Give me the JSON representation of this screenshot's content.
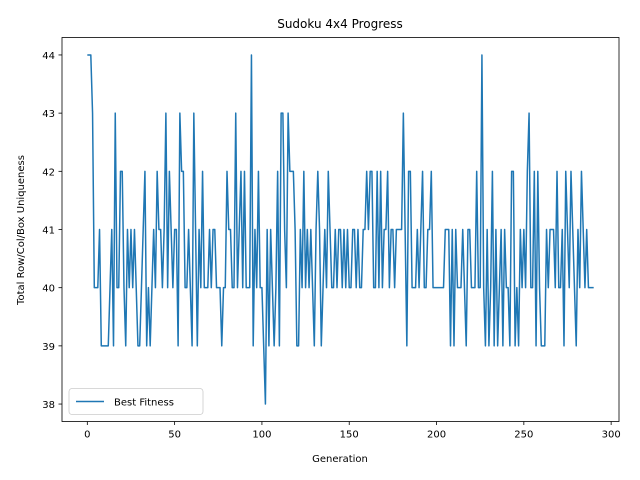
{
  "chart_data": {
    "type": "line",
    "title": "Sudoku 4x4 Progress",
    "x_label": "Generation",
    "y_label": "Total Row/Col/Box Uniqueness",
    "x": [
      0,
      1,
      2,
      3,
      4,
      5,
      6,
      7,
      8,
      9,
      10,
      11,
      12,
      13,
      14,
      15,
      16,
      17,
      18,
      19,
      20,
      21,
      22,
      23,
      24,
      25,
      26,
      27,
      28,
      29,
      30,
      31,
      32,
      33,
      34,
      35,
      36,
      37,
      38,
      39,
      40,
      41,
      42,
      43,
      44,
      45,
      46,
      47,
      48,
      49,
      50,
      51,
      52,
      53,
      54,
      55,
      56,
      57,
      58,
      59,
      60,
      61,
      62,
      63,
      64,
      65,
      66,
      67,
      68,
      69,
      70,
      71,
      72,
      73,
      74,
      75,
      76,
      77,
      78,
      79,
      80,
      81,
      82,
      83,
      84,
      85,
      86,
      87,
      88,
      89,
      90,
      91,
      92,
      93,
      94,
      95,
      96,
      97,
      98,
      99,
      100,
      101,
      102,
      103,
      104,
      105,
      106,
      107,
      108,
      109,
      110,
      111,
      112,
      113,
      114,
      115,
      116,
      117,
      118,
      119,
      120,
      121,
      122,
      123,
      124,
      125,
      126,
      127,
      128,
      129,
      130,
      131,
      132,
      133,
      134,
      135,
      136,
      137,
      138,
      139,
      140,
      141,
      142,
      143,
      144,
      145,
      146,
      147,
      148,
      149,
      150,
      151,
      152,
      153,
      154,
      155,
      156,
      157,
      158,
      159,
      160,
      161,
      162,
      163,
      164,
      165,
      166,
      167,
      168,
      169,
      170,
      171,
      172,
      173,
      174,
      175,
      176,
      177,
      178,
      179,
      180,
      181,
      182,
      183,
      184,
      185,
      186,
      187,
      188,
      189,
      190,
      191,
      192,
      193,
      194,
      195,
      196,
      197,
      198,
      199,
      200,
      201,
      202,
      203,
      204,
      205,
      206,
      207,
      208,
      209,
      210,
      211,
      212,
      213,
      214,
      215,
      216,
      217,
      218,
      219,
      220,
      221,
      222,
      223,
      224,
      225,
      226,
      227,
      228,
      229,
      230,
      231,
      232,
      233,
      234,
      235,
      236,
      237,
      238,
      239,
      240,
      241,
      242,
      243,
      244,
      245,
      246,
      247,
      248,
      249,
      250,
      251,
      252,
      253,
      254,
      255,
      256,
      257,
      258,
      259,
      260,
      261,
      262,
      263,
      264,
      265,
      266,
      267,
      268,
      269,
      270,
      271,
      272,
      273,
      274,
      275,
      276,
      277,
      278,
      279,
      280,
      281,
      282,
      283,
      284,
      285,
      286,
      287,
      288,
      289,
      290
    ],
    "series": [
      {
        "name": "Best Fitness",
        "color": "#1f77b4",
        "values": [
          44,
          44,
          44,
          43,
          40,
          40,
          40,
          41,
          39,
          39,
          39,
          39,
          39,
          40,
          41,
          39,
          43,
          40,
          40,
          42,
          42,
          40,
          39,
          41,
          40,
          41,
          40,
          41,
          40,
          39,
          39,
          40,
          41,
          42,
          39,
          40,
          39,
          40,
          41,
          40,
          42,
          41,
          41,
          40,
          41,
          43,
          40,
          42,
          41,
          40,
          41,
          41,
          39,
          43,
          42,
          42,
          40,
          40,
          41,
          40,
          39,
          43,
          41,
          39,
          41,
          40,
          42,
          40,
          40,
          40,
          41,
          40,
          41,
          41,
          40,
          40,
          40,
          39,
          40,
          40,
          42,
          41,
          41,
          40,
          40,
          43,
          40,
          41,
          42,
          40,
          42,
          40,
          40,
          40,
          44,
          39,
          41,
          40,
          42,
          40,
          40,
          39,
          38,
          41,
          39,
          41,
          40,
          39,
          40,
          42,
          39,
          43,
          43,
          41,
          40,
          43,
          42,
          42,
          42,
          41,
          39,
          39,
          41,
          40,
          42,
          40,
          41,
          40,
          41,
          40,
          39,
          41,
          42,
          41,
          39,
          40,
          41,
          40,
          42,
          41,
          40,
          40,
          41,
          40,
          41,
          41,
          40,
          41,
          40,
          41,
          40,
          40,
          41,
          41,
          40,
          41,
          40,
          40,
          41,
          41,
          42,
          41,
          42,
          42,
          40,
          40,
          42,
          40,
          42,
          40,
          41,
          41,
          42,
          40,
          41,
          41,
          40,
          41,
          41,
          41,
          41,
          43,
          41,
          39,
          42,
          42,
          40,
          40,
          40,
          41,
          40,
          41,
          42,
          40,
          40,
          41,
          41,
          42,
          40,
          40,
          40,
          40,
          40,
          40,
          40,
          41,
          41,
          41,
          39,
          41,
          39,
          41,
          40,
          40,
          40,
          41,
          40,
          39,
          41,
          41,
          40,
          40,
          40,
          42,
          40,
          40,
          44,
          40,
          39,
          41,
          39,
          40,
          42,
          39,
          41,
          39,
          40,
          41,
          39,
          41,
          40,
          40,
          39,
          42,
          42,
          39,
          40,
          39,
          41,
          40,
          41,
          40,
          42,
          43,
          40,
          40,
          42,
          39,
          42,
          40,
          39,
          39,
          39,
          41,
          40,
          41,
          41,
          41,
          40,
          42,
          40,
          40,
          41,
          39,
          42,
          41,
          40,
          42,
          41,
          40,
          39,
          41,
          40,
          42,
          41,
          40,
          41,
          40,
          40,
          40,
          40
        ]
      }
    ],
    "xlim": [
      -14.5,
      304.5
    ],
    "ylim": [
      37.7,
      44.3
    ],
    "xticks": [
      0,
      50,
      100,
      150,
      200,
      250,
      300
    ],
    "yticks": [
      38,
      39,
      40,
      41,
      42,
      43,
      44
    ],
    "legend": "lower left"
  }
}
